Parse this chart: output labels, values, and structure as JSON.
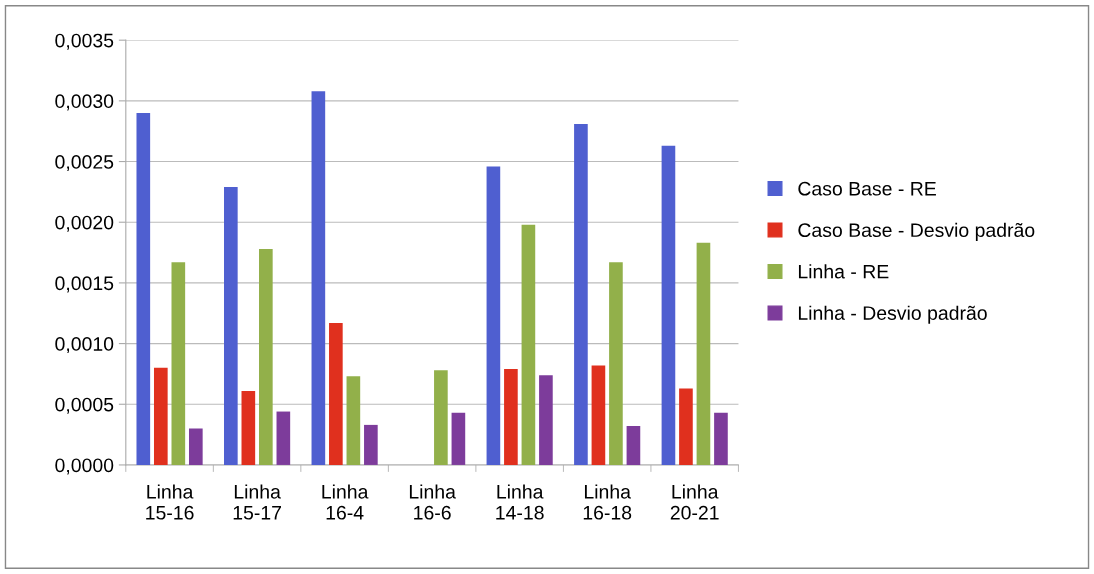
{
  "chart_data": {
    "type": "bar",
    "categories": [
      "Linha\n15-16",
      "Linha\n15-17",
      "Linha\n16-4",
      "Linha\n16-6",
      "Linha\n14-18",
      "Linha\n16-18",
      "Linha\n20-21"
    ],
    "series": [
      {
        "name": "Caso Base - RE",
        "color": "#4f5fd0",
        "values": [
          0.0029,
          0.00229,
          0.00308,
          null,
          0.00246,
          0.00281,
          0.00263
        ]
      },
      {
        "name": "Caso Base - Desvio padrão",
        "color": "#e0301e",
        "values": [
          0.0008,
          0.00061,
          0.00117,
          null,
          0.00079,
          0.00082,
          0.00063
        ]
      },
      {
        "name": "Linha - RE",
        "color": "#92b04a",
        "values": [
          0.00167,
          0.00178,
          0.00073,
          0.00078,
          0.00198,
          0.00167,
          0.00183
        ]
      },
      {
        "name": "Linha - Desvio padrão",
        "color": "#7d3c9b",
        "values": [
          0.0003,
          0.00044,
          0.00033,
          0.00043,
          0.00074,
          0.00032,
          0.00043
        ]
      }
    ],
    "ylim": [
      0,
      0.0035
    ],
    "yticks": [
      {
        "value": 0,
        "label": "0,0000"
      },
      {
        "value": 0.0005,
        "label": "0,0005"
      },
      {
        "value": 0.001,
        "label": "0,0010"
      },
      {
        "value": 0.0015,
        "label": "0,0015"
      },
      {
        "value": 0.002,
        "label": "0,0020"
      },
      {
        "value": 0.0025,
        "label": "0,0025"
      },
      {
        "value": 0.003,
        "label": "0,0030"
      },
      {
        "value": 0.0035,
        "label": "0,0035"
      }
    ],
    "grid": "y",
    "legend": "right"
  }
}
